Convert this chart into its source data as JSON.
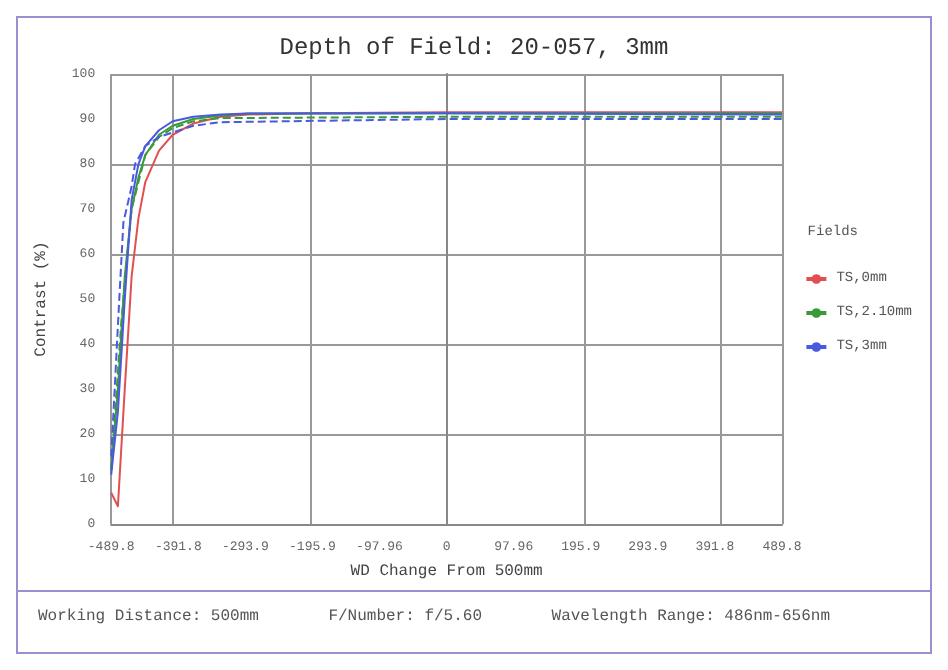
{
  "chart_data": {
    "type": "line",
    "title": "Depth of Field: 20-057, 3mm",
    "xlabel": "WD Change From 500mm",
    "ylabel": "Contrast (%)",
    "legend_title": "Fields",
    "legend": "right",
    "grid": true,
    "marker": "none",
    "xlim": [
      -489.8,
      489.8
    ],
    "xticks": [
      -489.8,
      -391.8,
      -293.9,
      -195.9,
      -97.96,
      0,
      97.96,
      195.9,
      293.9,
      391.8,
      489.8
    ],
    "ylim": [
      0,
      100
    ],
    "yticks": [
      0,
      10,
      20,
      30,
      40,
      50,
      60,
      70,
      80,
      90,
      100
    ],
    "series": [
      {
        "name": "TS,0mm",
        "color": "#e05050",
        "line_style": "solid",
        "x": [
          -489.8,
          -480,
          -470,
          -460,
          -450,
          -440,
          -420,
          -400,
          -370,
          -330,
          -290,
          -200,
          0,
          489.8
        ],
        "values": [
          7,
          4,
          30,
          55,
          68,
          76,
          83,
          86.5,
          89,
          90.5,
          91,
          91.3,
          91.5,
          91.5
        ]
      },
      {
        "name": "TS,2.10mm",
        "color": "#3a9a3a",
        "line_style": "solid",
        "x": [
          -489.8,
          -480,
          -470,
          -460,
          -450,
          -440,
          -420,
          -400,
          -370,
          -330,
          -290,
          0,
          489.8
        ],
        "values": [
          12,
          30,
          55,
          70,
          77,
          82,
          86.5,
          88.5,
          90,
          90.8,
          91.2,
          91.3,
          91.3
        ]
      },
      {
        "color": "#3a9a3a",
        "line_style": "dashed",
        "x": [
          -489.8,
          -475,
          -460,
          -440,
          -420,
          -400,
          -370,
          -330,
          0,
          489.8
        ],
        "values": [
          12,
          45,
          70,
          82,
          86,
          88,
          89.5,
          90.2,
          90.5,
          90.5
        ]
      },
      {
        "name": "TS,3mm",
        "color": "#4a5ae0",
        "line_style": "solid",
        "x": [
          -489.8,
          -480,
          -470,
          -460,
          -450,
          -440,
          -420,
          -400,
          -370,
          -330,
          -290,
          0,
          489.8
        ],
        "values": [
          11,
          25,
          50,
          72,
          80,
          84,
          87.5,
          89.5,
          90.5,
          91,
          91.2,
          91.3,
          91
        ]
      },
      {
        "color": "#4a5ae0",
        "line_style": "dashed",
        "x": [
          -489.8,
          -478,
          -472,
          -460,
          -455,
          -440,
          -420,
          -400,
          -370,
          -330,
          0,
          489.8
        ],
        "values": [
          15,
          50,
          67,
          75,
          80,
          84,
          86,
          87,
          88.5,
          89.3,
          90,
          90
        ]
      }
    ],
    "annotations": [
      "Working Distance: 500mm",
      "F/Number: f/5.60",
      "Wavelength Range: 486nm-656nm"
    ]
  }
}
